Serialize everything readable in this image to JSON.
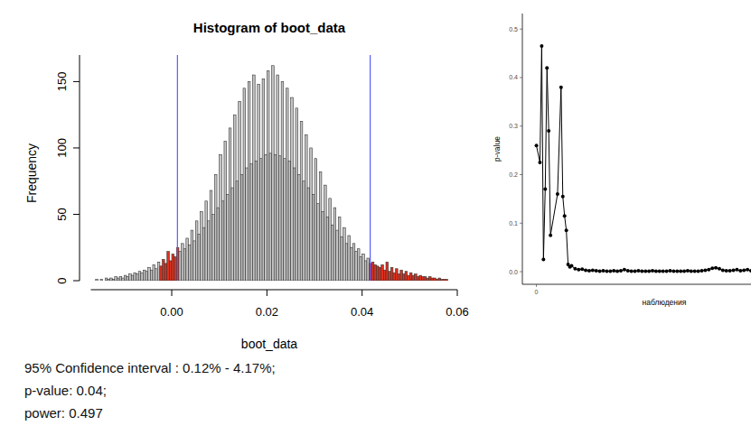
{
  "chart_data": [
    {
      "type": "histogram",
      "title": "Histogram of boot_data",
      "x_label": "boot_data",
      "y_label": "Frequency",
      "bins": [
        -0.016,
        -0.0155,
        -0.015,
        -0.0145,
        -0.014,
        -0.0135,
        -0.013,
        -0.0125,
        -0.012,
        -0.0115,
        -0.011,
        -0.0105,
        -0.01,
        -0.0095,
        -0.009,
        -0.0085,
        -0.008,
        -0.0075,
        -0.007,
        -0.0065,
        -0.006,
        -0.0055,
        -0.005,
        -0.0045,
        -0.004,
        -0.0035,
        -0.003,
        -0.0025,
        -0.002,
        -0.0015,
        -0.001,
        -0.0005,
        0,
        0.0005,
        0.001,
        0.0015,
        0.002,
        0.0025,
        0.003,
        0.0035,
        0.004,
        0.0045,
        0.005,
        0.0055,
        0.006,
        0.0065,
        0.007,
        0.0075,
        0.008,
        0.0085,
        0.009,
        0.0095,
        0.01,
        0.0105,
        0.011,
        0.0115,
        0.012,
        0.0125,
        0.013,
        0.0135,
        0.014,
        0.0145,
        0.015,
        0.0155,
        0.016,
        0.0165,
        0.017,
        0.0175,
        0.018,
        0.0185,
        0.019,
        0.0195,
        0.02,
        0.0205,
        0.021,
        0.0215,
        0.022,
        0.0225,
        0.023,
        0.0235,
        0.024,
        0.0245,
        0.025,
        0.0255,
        0.026,
        0.0265,
        0.027,
        0.0275,
        0.028,
        0.0285,
        0.029,
        0.0295,
        0.03,
        0.0305,
        0.031,
        0.0315,
        0.032,
        0.0325,
        0.033,
        0.0335,
        0.034,
        0.0345,
        0.035,
        0.0355,
        0.036,
        0.0365,
        0.037,
        0.0375,
        0.038,
        0.0385,
        0.039,
        0.0395,
        0.04,
        0.0405,
        0.041,
        0.0415,
        0.042,
        0.0425,
        0.043,
        0.0435,
        0.044,
        0.0445,
        0.045,
        0.0455,
        0.046,
        0.0465,
        0.047,
        0.0475,
        0.048,
        0.0485,
        0.049,
        0.0495,
        0.05,
        0.0505,
        0.051,
        0.0515,
        0.052,
        0.0525,
        0.053,
        0.0535,
        0.054,
        0.0545,
        0.055,
        0.0555,
        0.056,
        0.0565,
        0.057,
        0.0575,
        0.058
      ],
      "values": [
        1,
        0,
        1,
        0,
        2,
        1,
        2,
        1,
        3,
        2,
        3,
        2,
        4,
        3,
        5,
        4,
        6,
        5,
        7,
        6,
        8,
        7,
        10,
        8,
        12,
        9,
        14,
        11,
        16,
        13,
        22,
        15,
        20,
        18,
        25,
        22,
        28,
        24,
        32,
        27,
        38,
        30,
        45,
        35,
        52,
        40,
        60,
        45,
        68,
        50,
        80,
        55,
        95,
        60,
        105,
        65,
        115,
        70,
        125,
        75,
        135,
        80,
        145,
        85,
        150,
        88,
        155,
        90,
        148,
        92,
        152,
        95,
        158,
        96,
        162,
        95,
        155,
        94,
        150,
        92,
        145,
        90,
        138,
        85,
        130,
        80,
        120,
        75,
        110,
        70,
        100,
        65,
        92,
        58,
        82,
        52,
        72,
        48,
        62,
        42,
        55,
        38,
        48,
        33,
        40,
        28,
        34,
        25,
        28,
        22,
        24,
        18,
        20,
        15,
        17,
        13,
        14,
        12,
        11,
        10,
        12,
        8,
        14,
        7,
        10,
        6,
        9,
        5,
        8,
        5,
        7,
        4,
        6,
        4,
        5,
        3,
        4,
        3,
        3,
        2,
        3,
        2,
        2,
        1,
        2,
        1,
        1,
        1
      ],
      "colors": [
        "#c4c4c4",
        "#c4c4c4",
        "#c4c4c4",
        "#c4c4c4",
        "#c4c4c4",
        "#c4c4c4",
        "#c4c4c4",
        "#c4c4c4",
        "#c4c4c4",
        "#c4c4c4",
        "#c4c4c4",
        "#c4c4c4",
        "#c4c4c4",
        "#c4c4c4",
        "#c4c4c4",
        "#c4c4c4",
        "#c4c4c4",
        "#c4c4c4",
        "#c4c4c4",
        "#c4c4c4",
        "#c4c4c4",
        "#c4c4c4",
        "#c4c4c4",
        "#c4c4c4",
        "#c4c4c4",
        "#c4c4c4",
        "#c4c4c4",
        "#e0301e",
        "#e0301e",
        "#e0301e",
        "#e0301e",
        "#e0301e",
        "#e0301e",
        "#e0301e",
        "#e0301e",
        "#c4c4c4",
        "#c4c4c4",
        "#c4c4c4",
        "#c4c4c4",
        "#c4c4c4",
        "#c4c4c4",
        "#c4c4c4",
        "#c4c4c4",
        "#c4c4c4",
        "#c4c4c4",
        "#c4c4c4",
        "#c4c4c4",
        "#c4c4c4",
        "#c4c4c4",
        "#c4c4c4",
        "#c4c4c4",
        "#c4c4c4",
        "#c4c4c4",
        "#c4c4c4",
        "#c4c4c4",
        "#c4c4c4",
        "#c4c4c4",
        "#c4c4c4",
        "#c4c4c4",
        "#c4c4c4",
        "#c4c4c4",
        "#c4c4c4",
        "#c4c4c4",
        "#c4c4c4",
        "#c4c4c4",
        "#c4c4c4",
        "#c4c4c4",
        "#c4c4c4",
        "#c4c4c4",
        "#c4c4c4",
        "#c4c4c4",
        "#c4c4c4",
        "#c4c4c4",
        "#c4c4c4",
        "#c4c4c4",
        "#c4c4c4",
        "#c4c4c4",
        "#c4c4c4",
        "#c4c4c4",
        "#c4c4c4",
        "#c4c4c4",
        "#c4c4c4",
        "#c4c4c4",
        "#c4c4c4",
        "#c4c4c4",
        "#c4c4c4",
        "#c4c4c4",
        "#c4c4c4",
        "#c4c4c4",
        "#c4c4c4",
        "#c4c4c4",
        "#c4c4c4",
        "#c4c4c4",
        "#c4c4c4",
        "#c4c4c4",
        "#c4c4c4",
        "#c4c4c4",
        "#c4c4c4",
        "#c4c4c4",
        "#c4c4c4",
        "#c4c4c4",
        "#c4c4c4",
        "#c4c4c4",
        "#c4c4c4",
        "#c4c4c4",
        "#c4c4c4",
        "#c4c4c4",
        "#c4c4c4",
        "#c4c4c4",
        "#c4c4c4",
        "#c4c4c4",
        "#c4c4c4",
        "#c4c4c4",
        "#c4c4c4",
        "#c4c4c4",
        "#e0301e",
        "#e0301e",
        "#e0301e",
        "#e0301e",
        "#e0301e",
        "#e0301e",
        "#e0301e",
        "#e0301e",
        "#e0301e",
        "#e0301e",
        "#e0301e",
        "#e0301e",
        "#e0301e",
        "#e0301e",
        "#e0301e",
        "#e0301e",
        "#e0301e",
        "#e0301e",
        "#e0301e",
        "#e0301e",
        "#e0301e",
        "#e0301e",
        "#e0301e",
        "#e0301e",
        "#e0301e",
        "#e0301e",
        "#e0301e",
        "#e0301e",
        "#e0301e",
        "#e0301e",
        "#e0301e",
        "#e0301e",
        "#e0301e"
      ],
      "ci_lines": [
        0.0012,
        0.0417
      ],
      "xlim": [
        -0.017,
        0.06
      ],
      "ylim": [
        0,
        170
      ],
      "xticks": [
        {
          "value": 0,
          "label": "0.00"
        },
        {
          "value": 0.02,
          "label": "0.02"
        },
        {
          "value": 0.04,
          "label": "0.04"
        },
        {
          "value": 0.06,
          "label": "0.06"
        }
      ],
      "yticks": [
        0,
        50,
        100,
        150
      ],
      "annotations": [
        "95% Confidence interval : 0.12% - 4.17%;",
        "p-value: 0.04;",
        "power: 0.497"
      ]
    },
    {
      "type": "line",
      "x_label": "наблюдения",
      "y_label": "p-value",
      "color": "#000000",
      "marker": "circle",
      "x": [
        0,
        2,
        3,
        4,
        5,
        6,
        7,
        8,
        12,
        14,
        15,
        16,
        17,
        18,
        19,
        20,
        22,
        24,
        26,
        28,
        30,
        32,
        34,
        36,
        38,
        40,
        42,
        44,
        46,
        48,
        50,
        52,
        54,
        56,
        58,
        60,
        62,
        64,
        66,
        68,
        70,
        72,
        74,
        76,
        78,
        80,
        82,
        84,
        86,
        88,
        90,
        92,
        94,
        96,
        98,
        100,
        102,
        104,
        106,
        108,
        110,
        112,
        114,
        116,
        118,
        120,
        122
      ],
      "values": [
        0.26,
        0.225,
        0.465,
        0.025,
        0.17,
        0.42,
        0.29,
        0.075,
        0.16,
        0.38,
        0.155,
        0.115,
        0.085,
        0.015,
        0.01,
        0.012,
        0.006,
        0.004,
        0.005,
        0.003,
        0.002,
        0.003,
        0.002,
        0.001,
        0.002,
        0.001,
        0.001,
        0.002,
        0.001,
        0.002,
        0.004,
        0.002,
        0.001,
        0.001,
        0.002,
        0.001,
        0.001,
        0.001,
        0.002,
        0.001,
        0.001,
        0.001,
        0.001,
        0.002,
        0.001,
        0.001,
        0.001,
        0.001,
        0.002,
        0.001,
        0.001,
        0.001,
        0.002,
        0.003,
        0.004,
        0.007,
        0.008,
        0.006,
        0.003,
        0.002,
        0.002,
        0.003,
        0.004,
        0.002,
        0.003,
        0.004,
        0.002
      ],
      "xlim": [
        -8,
        122
      ],
      "ylim": [
        -0.026,
        0.532
      ],
      "xticks": [
        0
      ],
      "yticks": [
        {
          "value": 0,
          "label": "0.0"
        },
        {
          "value": 0.1,
          "label": "0.1"
        },
        {
          "value": 0.2,
          "label": "0.2"
        },
        {
          "value": 0.3,
          "label": "0.3"
        },
        {
          "value": 0.4,
          "label": "0.4"
        },
        {
          "value": 0.5,
          "label": "0.5"
        }
      ]
    }
  ]
}
